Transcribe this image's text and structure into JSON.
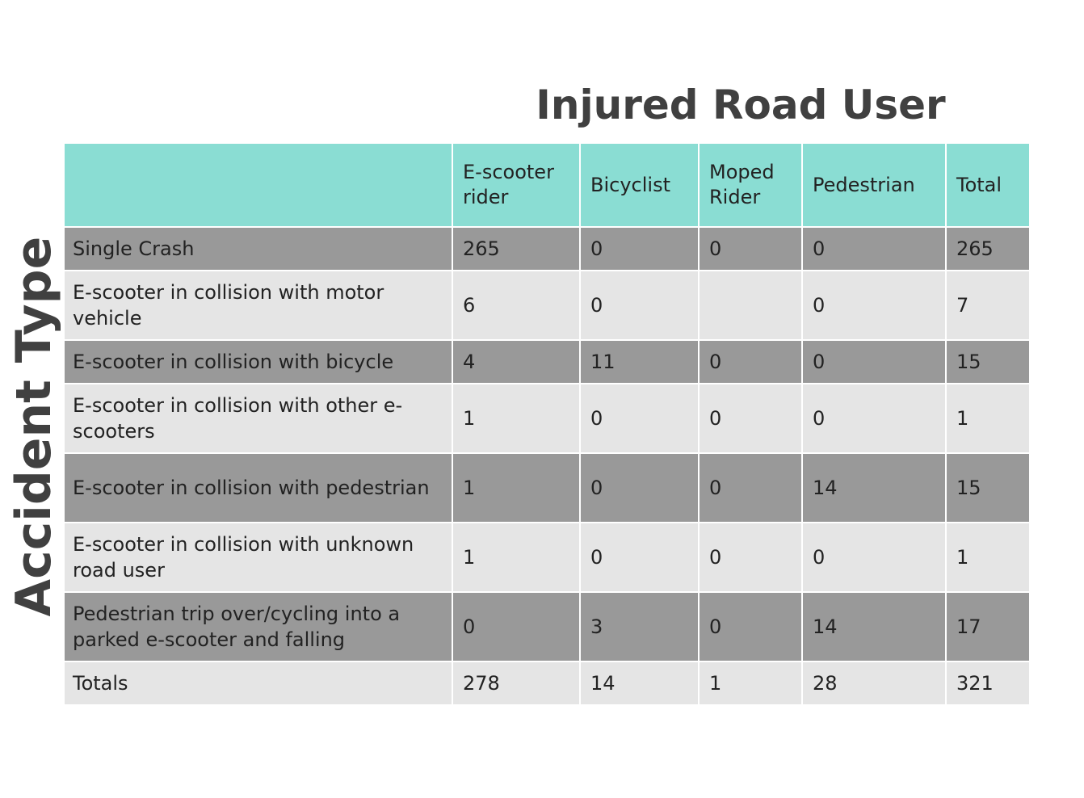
{
  "column_title": "Injured Road User",
  "row_title": "Accident Type",
  "table": {
    "headers": [
      "",
      "E-scooter rider",
      "Bicyclist",
      "Moped Rider",
      "Pedestrian",
      "Total"
    ],
    "rows": [
      {
        "label": "Single Crash",
        "values": [
          "265",
          "0",
          "0",
          "0",
          "265"
        ]
      },
      {
        "label": "E-scooter in collision with motor vehicle",
        "values": [
          "6",
          "0",
          "",
          "0",
          "7"
        ]
      },
      {
        "label": "E-scooter in collision with bicycle",
        "values": [
          "4",
          "11",
          "0",
          "0",
          "15"
        ]
      },
      {
        "label": "E-scooter in collision with other e-scooters",
        "values": [
          "1",
          "0",
          "0",
          "0",
          "1"
        ]
      },
      {
        "label": "E-scooter in collision with pedestrian",
        "values": [
          "1",
          "0",
          "0",
          "14",
          "15"
        ]
      },
      {
        "label": "E-scooter in collision with unknown road user",
        "values": [
          "1",
          "0",
          "0",
          "0",
          "1"
        ]
      },
      {
        "label": "Pedestrian trip over/cycling into a parked e-scooter and falling",
        "values": [
          "0",
          "3",
          "0",
          "14",
          "17"
        ]
      },
      {
        "label": "Totals",
        "values": [
          "278",
          "14",
          "1",
          "28",
          "321"
        ]
      }
    ]
  },
  "colors": {
    "header_background": "#8addd3",
    "dark_row": "#999999",
    "light_row": "#e5e5e5",
    "title_text": "#404040"
  }
}
